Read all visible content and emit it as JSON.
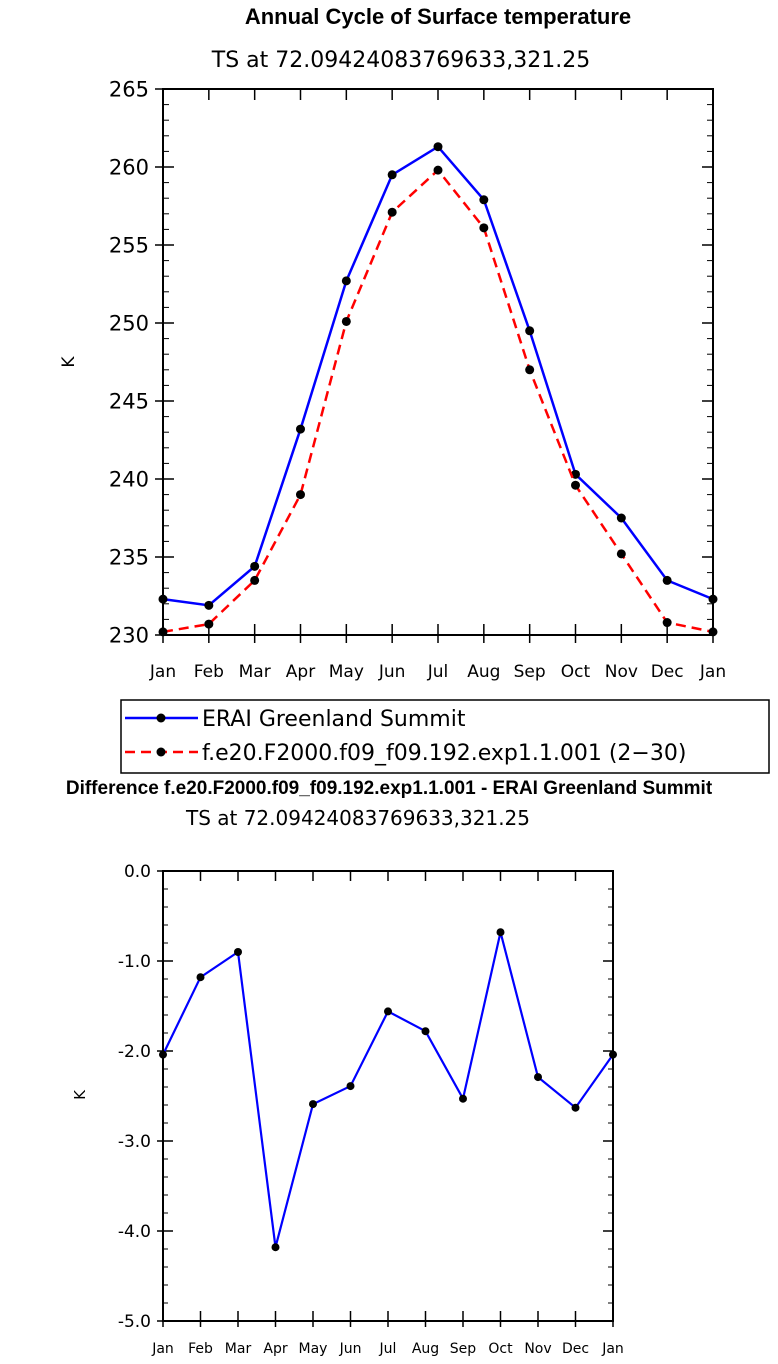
{
  "chart_data": [
    {
      "type": "line",
      "title": "Annual Cycle of Surface temperature",
      "subtitle": "TS at 72.09424083769633,321.25",
      "xlabel": "",
      "ylabel": "K",
      "categories": [
        "Jan",
        "Feb",
        "Mar",
        "Apr",
        "May",
        "Jun",
        "Jul",
        "Aug",
        "Sep",
        "Oct",
        "Nov",
        "Dec",
        "Jan"
      ],
      "ylim": [
        230,
        265
      ],
      "yticks": [
        "230",
        "235",
        "240",
        "245",
        "250",
        "255",
        "260",
        "265"
      ],
      "series": [
        {
          "name": "ERAI Greenland Summit",
          "color": "#0000ff",
          "dash": "solid",
          "values": [
            232.3,
            231.9,
            234.4,
            243.2,
            252.7,
            259.5,
            261.3,
            257.9,
            249.5,
            240.3,
            237.5,
            233.5,
            232.3
          ]
        },
        {
          "name": "f.e20.F2000.f09_f09.192.exp1.1.001 (2−30)",
          "color": "#ff0000",
          "dash": "dashed",
          "values": [
            230.2,
            230.7,
            233.5,
            239.0,
            250.1,
            257.1,
            259.8,
            256.1,
            247.0,
            239.6,
            235.2,
            230.8,
            230.2
          ]
        }
      ],
      "legend": "below"
    },
    {
      "type": "line",
      "title": "Difference f.e20.F2000.f09_f09.192.exp1.1.001 - ERAI Greenland Summit",
      "subtitle": "TS at 72.09424083769633,321.25",
      "xlabel": "",
      "ylabel": "K",
      "categories": [
        "Jan",
        "Feb",
        "Mar",
        "Apr",
        "May",
        "Jun",
        "Jul",
        "Aug",
        "Sep",
        "Oct",
        "Nov",
        "Dec",
        "Jan"
      ],
      "ylim": [
        -5.0,
        0.0
      ],
      "yticks": [
        "0.0",
        "-1.0",
        "-2.0",
        "-3.0",
        "-4.0",
        "-5.0"
      ],
      "series": [
        {
          "name": "Difference",
          "color": "#0000ff",
          "dash": "solid",
          "values": [
            -2.04,
            -1.18,
            -0.9,
            -4.18,
            -2.59,
            -2.39,
            -1.56,
            -1.78,
            -2.53,
            -0.68,
            -2.29,
            -2.63,
            -2.04
          ]
        }
      ]
    }
  ]
}
